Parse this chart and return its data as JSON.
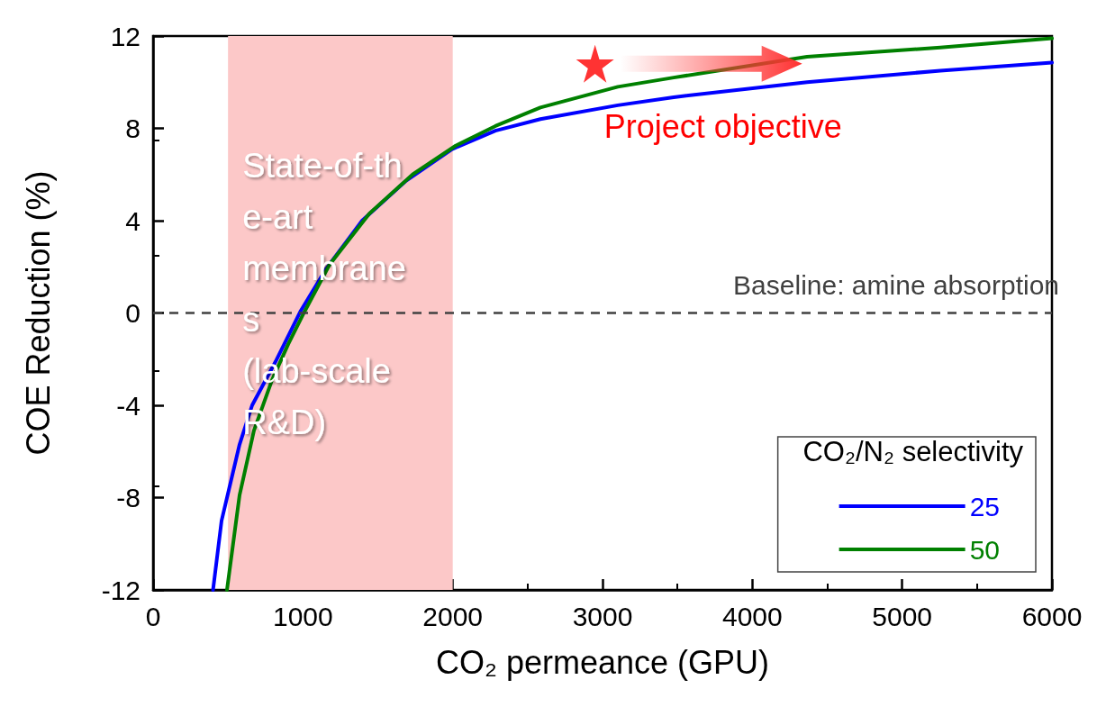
{
  "chart_data": {
    "type": "line",
    "xlabel": "CO₂ permeance (GPU)",
    "ylabel": "COE Reduction (%)",
    "legend_title": "CO₂/N₂ selectivity",
    "xlim": [
      0,
      6000
    ],
    "xticks": [
      0,
      1000,
      2000,
      3000,
      4000,
      5000,
      6000
    ],
    "ylim": [
      -12,
      12
    ],
    "yticks": [
      -12,
      -8,
      -4,
      0,
      4,
      8,
      12
    ],
    "grid": false,
    "legend": "bottom right",
    "marker": "none",
    "line_style": "solid",
    "series": [
      {
        "name": "25",
        "color": "#0000ff",
        "x": [
          400,
          457,
          577,
          661,
          818,
          986,
          1154,
          1395,
          1683,
          1996,
          2285,
          2585,
          3102,
          3475,
          4365,
          5255,
          6000
        ],
        "values": [
          -12,
          -9.0,
          -5.7,
          -4.0,
          -2.1,
          0.1,
          1.9,
          4.0,
          5.7,
          7.1,
          7.9,
          8.4,
          9.0,
          9.35,
          10.0,
          10.5,
          10.85
        ]
      },
      {
        "name": "50",
        "color": "#008000",
        "x": [
          493,
          577,
          673,
          794,
          902,
          1010,
          1178,
          1443,
          1732,
          2020,
          2285,
          2585,
          3102,
          3475,
          4365,
          5255,
          6000
        ],
        "values": [
          -12,
          -7.9,
          -5.1,
          -2.9,
          -1.35,
          0.05,
          2.1,
          4.3,
          6.0,
          7.25,
          8.1,
          8.9,
          9.8,
          10.2,
          11.1,
          11.5,
          11.9
        ]
      },
      {
        "type": "scatter",
        "marker": "star",
        "color": "#ff0000",
        "x": [
          2950
        ],
        "values": [
          10.8
        ]
      }
    ],
    "ref_lines": [
      {
        "axis": "y",
        "value": 0,
        "label": "Baseline: amine absorption",
        "color": "#404040",
        "line_style": "dashed"
      }
    ],
    "bands": [
      {
        "axis": "x",
        "from": 500,
        "to": 2000,
        "label": "State-of-the-art membranes (lab-scale R&D)",
        "color": "#fcc8c8"
      }
    ],
    "annotations": [
      "Project objective"
    ]
  }
}
